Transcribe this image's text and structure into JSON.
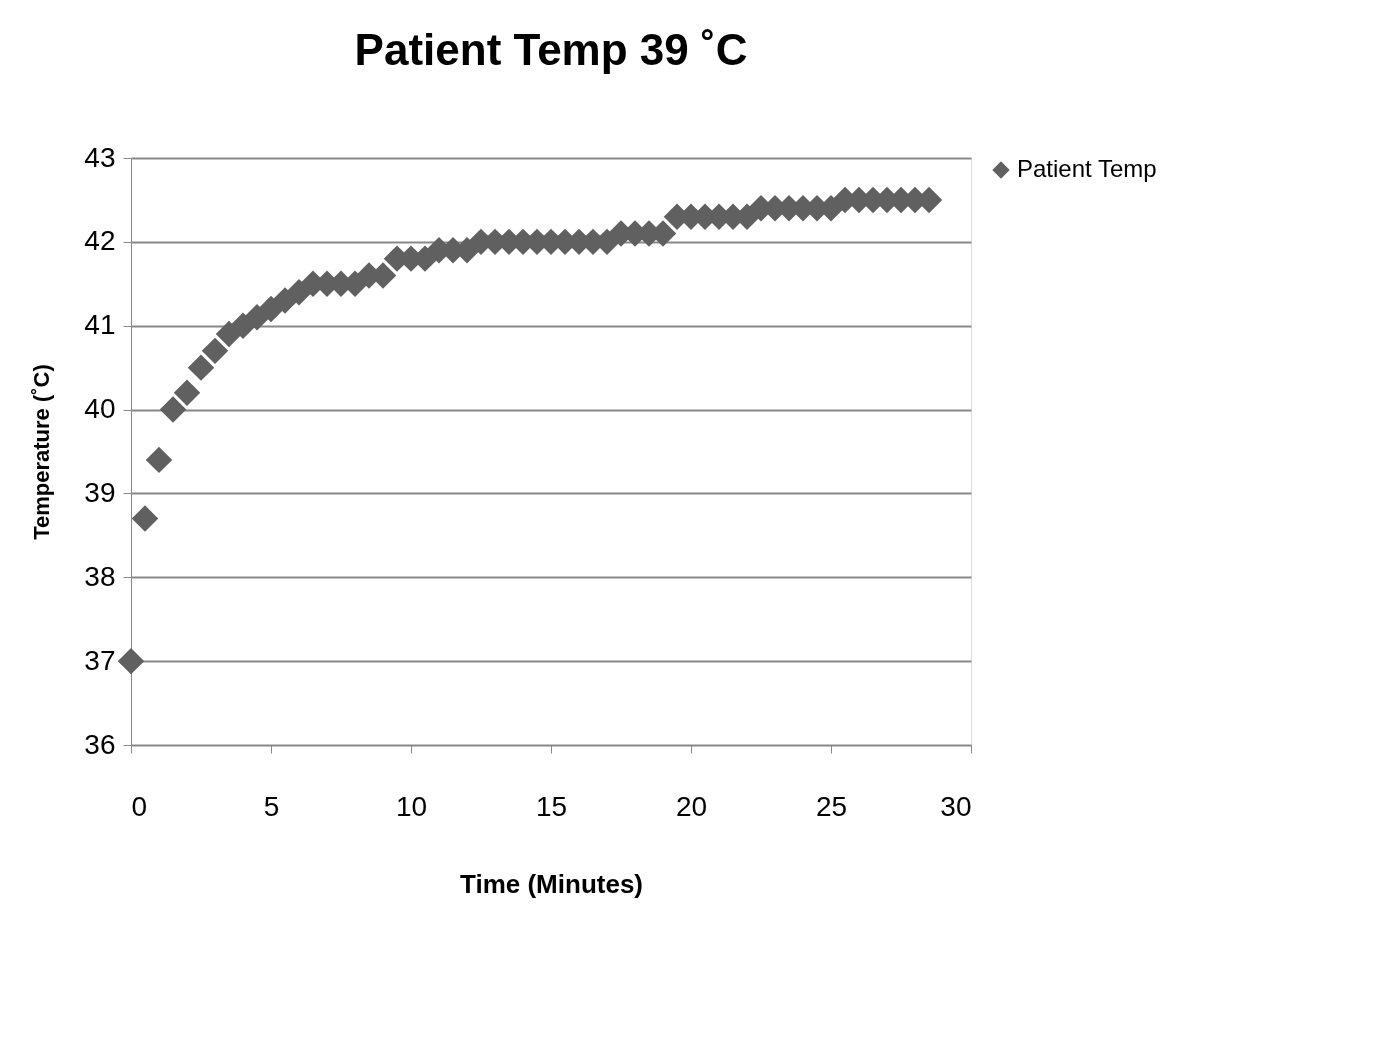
{
  "chart_data": {
    "type": "scatter",
    "title": "Patient Temp 39 ˚C",
    "xlabel": "Time (Minutes)",
    "ylabel": "Temperature (˚C)",
    "x": [
      0,
      0.5,
      1,
      1.5,
      2,
      2.5,
      3,
      3.5,
      4,
      4.5,
      5,
      5.5,
      6,
      6.5,
      7,
      7.5,
      8,
      8.5,
      9,
      9.5,
      10,
      10.5,
      11,
      11.5,
      12,
      12.5,
      13,
      13.5,
      14,
      14.5,
      15,
      15.5,
      16,
      16.5,
      17,
      17.5,
      18,
      18.5,
      19,
      19.5,
      20,
      20.5,
      21,
      21.5,
      22,
      22.5,
      23,
      23.5,
      24,
      24.5,
      25,
      25.5,
      26,
      26.5,
      27,
      27.5,
      28,
      28.5
    ],
    "series": [
      {
        "name": "Patient Temp",
        "color": "#606060",
        "values": [
          37,
          38.7,
          39.4,
          40.0,
          40.2,
          40.5,
          40.7,
          40.9,
          41.0,
          41.1,
          41.2,
          41.3,
          41.4,
          41.5,
          41.5,
          41.5,
          41.5,
          41.6,
          41.6,
          41.8,
          41.8,
          41.8,
          41.9,
          41.9,
          41.9,
          42.0,
          42.0,
          42.0,
          42.0,
          42.0,
          42.0,
          42.0,
          42.0,
          42.0,
          42.0,
          42.1,
          42.1,
          42.1,
          42.1,
          42.3,
          42.3,
          42.3,
          42.3,
          42.3,
          42.3,
          42.4,
          42.4,
          42.4,
          42.4,
          42.4,
          42.4,
          42.5,
          42.5,
          42.5,
          42.5,
          42.5,
          42.5,
          42.5
        ]
      }
    ],
    "xlim": [
      0,
      30
    ],
    "xticks": [
      0,
      5,
      10,
      15,
      20,
      25,
      30
    ],
    "ylim": [
      36,
      43
    ],
    "yticks": [
      36,
      37,
      38,
      39,
      40,
      41,
      42,
      43
    ],
    "grid": "y",
    "legend": "right",
    "marker": "diamond"
  }
}
